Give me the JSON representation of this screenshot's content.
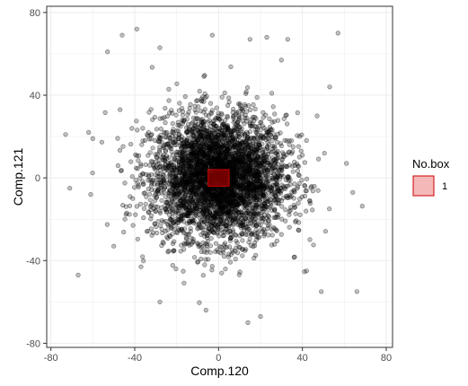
{
  "chart_data": {
    "type": "scatter",
    "xlabel": "Comp.120",
    "ylabel": "Comp.121",
    "xlim": [
      -82,
      83
    ],
    "ylim": [
      -82,
      83
    ],
    "x_ticks": [
      -80,
      -40,
      0,
      40,
      80
    ],
    "y_ticks": [
      -80,
      -40,
      0,
      40,
      80
    ],
    "x_tick_labels": [
      "-80",
      "-40",
      "0",
      "40",
      "80"
    ],
    "y_tick_labels": [
      "-80",
      "-40",
      "0",
      "40",
      "80"
    ],
    "grid": true,
    "legend": {
      "title": "No.box",
      "placement": "right",
      "entries": [
        {
          "label": "1",
          "fill": "#f4b8b8",
          "stroke": "#cc0000"
        }
      ]
    },
    "point_style": {
      "fill": "#000000",
      "fill_opacity": 0.25,
      "stroke": "#000000",
      "stroke_opacity": 0.5
    },
    "cloud": {
      "n": 4200,
      "center": [
        0,
        0
      ],
      "sd": [
        16,
        15
      ]
    },
    "outliers": [
      {
        "x": -73,
        "y": 21
      },
      {
        "x": -67,
        "y": -47
      },
      {
        "x": -71,
        "y": -5
      },
      {
        "x": -60,
        "y": 19
      },
      {
        "x": -62,
        "y": 22
      },
      {
        "x": -61,
        "y": -8
      },
      {
        "x": -53,
        "y": 61
      },
      {
        "x": -46,
        "y": 69
      },
      {
        "x": -39,
        "y": 72
      },
      {
        "x": -28,
        "y": 63
      },
      {
        "x": -3,
        "y": 69
      },
      {
        "x": 15,
        "y": 67
      },
      {
        "x": 23,
        "y": 68
      },
      {
        "x": 33,
        "y": 67
      },
      {
        "x": 57,
        "y": 70
      },
      {
        "x": 61,
        "y": 7
      },
      {
        "x": 64,
        "y": -7
      },
      {
        "x": 66,
        "y": -55
      },
      {
        "x": 49,
        "y": -55
      },
      {
        "x": 20,
        "y": -67
      },
      {
        "x": 14,
        "y": -70
      },
      {
        "x": -28,
        "y": -60
      },
      {
        "x": -6,
        "y": -64
      },
      {
        "x": 53,
        "y": 44
      },
      {
        "x": 47,
        "y": 30
      },
      {
        "x": -47,
        "y": 33
      },
      {
        "x": -50,
        "y": -33
      },
      {
        "x": 42,
        "y": -45
      },
      {
        "x": -37,
        "y": -43
      },
      {
        "x": 30,
        "y": 57
      }
    ],
    "boxes": [
      {
        "label": "1",
        "x": [
          -5,
          5
        ],
        "y": [
          -4,
          4
        ],
        "fill": "#cc0000",
        "fill_opacity": 0.55,
        "stroke": "#cc0000"
      }
    ]
  }
}
